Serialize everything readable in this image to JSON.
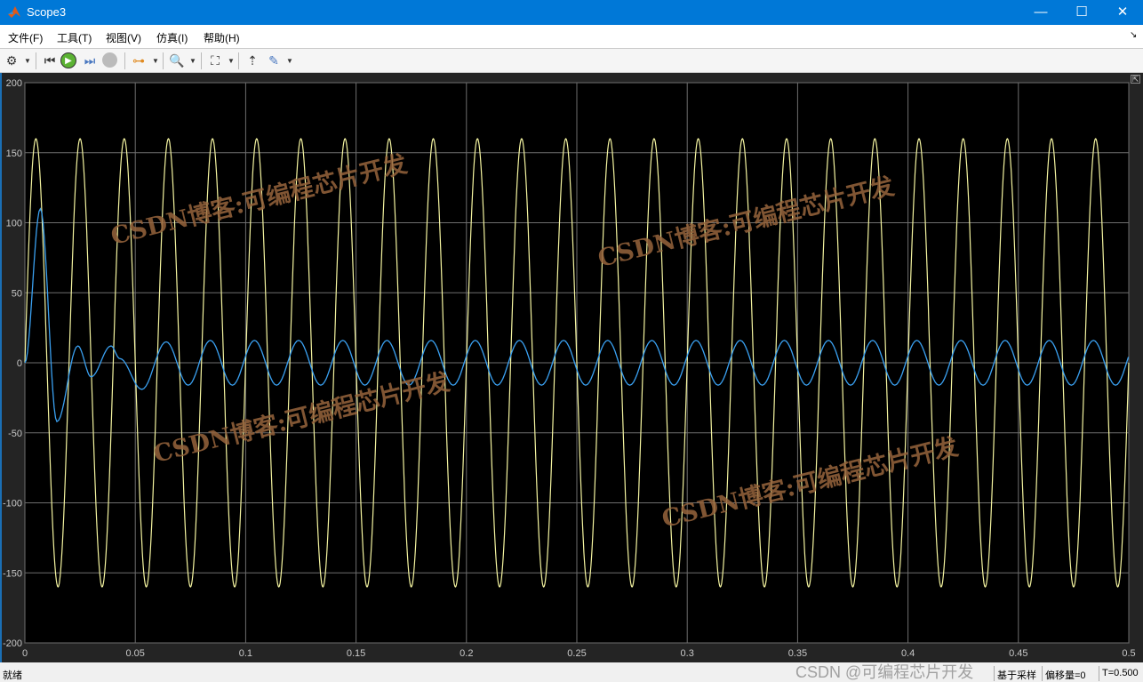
{
  "window": {
    "title": "Scope3",
    "minimize": "—",
    "maximize": "☐",
    "close": "✕"
  },
  "menu": [
    "文件(F)",
    "工具(T)",
    "视图(V)",
    "仿真(I)",
    "帮助(H)"
  ],
  "toolbar": {
    "icons": [
      "gear-icon",
      "step-back-icon",
      "run-icon",
      "step-forward-icon",
      "stop-icon",
      "signal-selector-icon",
      "zoom-in-icon",
      "fit-axes-icon",
      "triggers-icon",
      "cursor-measure-icon"
    ]
  },
  "status": {
    "left": "就绪",
    "sample": "基于采样",
    "offset": "偏移量=0",
    "time": "T=0.500"
  },
  "watermark": {
    "text": "CSDN博客:可编程芯片开发",
    "credit": "CSDN @可编程芯片开发"
  },
  "colors": {
    "background": "#000000",
    "grid": "#6e6e6e",
    "yellow": "#f4f4a0",
    "blue": "#3aa0f0"
  },
  "chart_data": {
    "type": "line",
    "xlim": [
      0,
      0.5
    ],
    "ylim": [
      -200,
      200
    ],
    "grid": true,
    "xticks": [
      "0",
      "0.05",
      "0.1",
      "0.15",
      "0.2",
      "0.25",
      "0.3",
      "0.35",
      "0.4",
      "0.45",
      "0.5"
    ],
    "yticks": [
      "200",
      "150",
      "100",
      "50",
      "0",
      "-50",
      "-100",
      "-150",
      "-200"
    ],
    "series": [
      {
        "color": "#f4f4a0",
        "form": "sine",
        "amplitude": 160,
        "frequency_hz": 50,
        "phase_deg": 0
      },
      {
        "color": "#3aa0f0",
        "form": "extrema",
        "points": [
          [
            0,
            0
          ],
          [
            0.007,
            110
          ],
          [
            0.0145,
            -42
          ],
          [
            0.024,
            12
          ],
          [
            0.03,
            -10
          ],
          [
            0.039,
            12
          ],
          [
            0.043,
            3
          ],
          [
            0.053,
            -19
          ],
          [
            0.064,
            15
          ]
        ],
        "steady": {
          "amplitude": 16,
          "frequency_hz": 50,
          "first_peak_t": 0.064
        }
      }
    ]
  }
}
